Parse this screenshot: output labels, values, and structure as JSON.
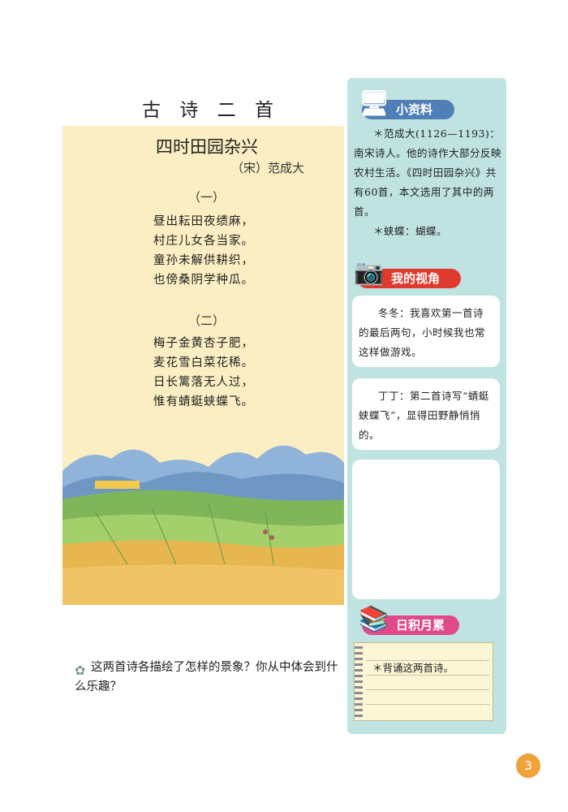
{
  "main_title": "古 诗 二 首",
  "poem": {
    "title": "四时田园杂兴",
    "author": "（宋）范成大",
    "sections": [
      {
        "number": "（一）",
        "lines": [
          "昼出耘田夜绩麻，",
          "村庄儿女各当家。",
          "童孙未解供耕织，",
          "也傍桑阴学种瓜。"
        ]
      },
      {
        "number": "（二）",
        "lines": [
          "梅子金黄杏子肥，",
          "麦花雪白菜花稀。",
          "日长篱落无人过，",
          "惟有蜻蜓蛱蝶飞。"
        ]
      }
    ]
  },
  "question": "这两首诗各描绘了怎样的景象？你从中体会到什么乐趣？",
  "sidebar": {
    "info_badge": "小资料",
    "info_lines": [
      "＊范成大(1126—1193)：南宋诗人。他的诗作大部分反映农村生活。《四时田园杂兴》共有60首，本文选用了其中的两首。",
      "＊蛱蝶：蝴蝶。"
    ],
    "view_badge": "我的视角",
    "comments": [
      "冬冬：我喜欢第一首诗的最后两句，小时候我也常这样做游戏。",
      "丁丁：第二首诗写“蜻蜓蛱蝶飞”，显得田野静悄悄的。"
    ],
    "accum_badge": "日积月累",
    "accum_text": "＊背诵这两首诗。"
  },
  "page_number": "3",
  "colors": {
    "poem_panel": "#fbeec2",
    "side_panel": "#bfe3e1",
    "info_badge": "#4f7fb6",
    "view_badge": "#e03a2f",
    "accum_badge": "#e04a8a",
    "page_badge": "#f0a23a"
  },
  "icons": {
    "info": "computer-icon",
    "view": "camera-icon",
    "accum": "book-stack-icon",
    "question": "flower-icon"
  }
}
